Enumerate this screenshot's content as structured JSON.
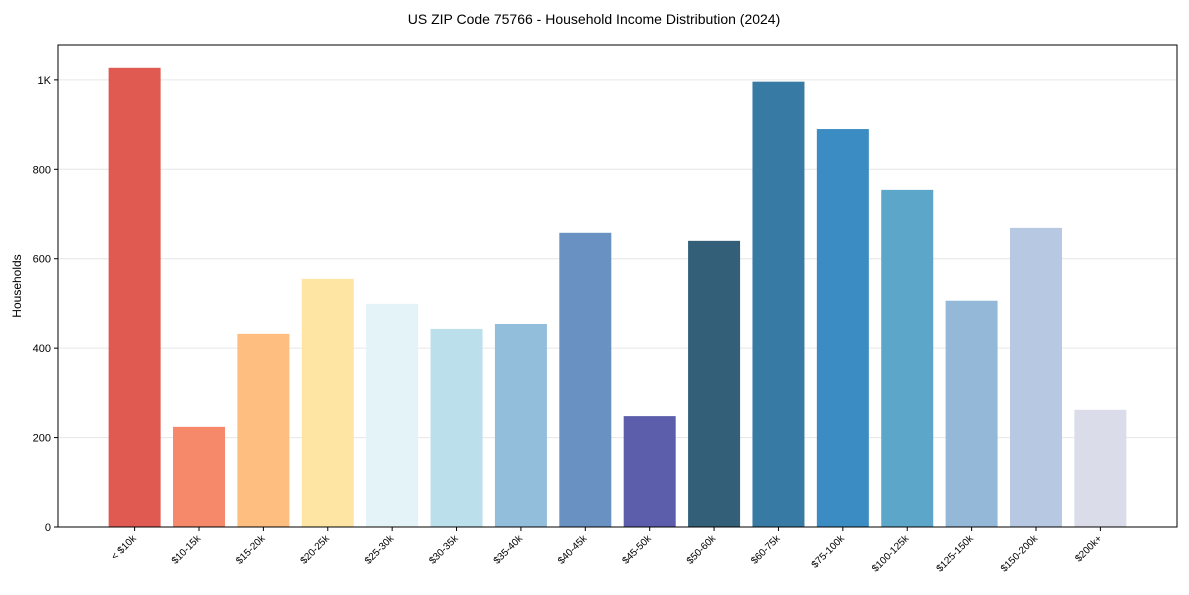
{
  "chart_data": {
    "type": "bar",
    "title": "US ZIP Code 75766 - Household Income Distribution (2024)",
    "xlabel": "",
    "ylabel": "Households",
    "ylim": [
      0,
      1078
    ],
    "grid": "horizontal",
    "yticks": [
      0,
      200,
      400,
      600,
      800,
      1000
    ],
    "ytick_labels": [
      "0",
      "200",
      "400",
      "600",
      "800",
      "1K"
    ],
    "categories": [
      "< $10k",
      "$10-15k",
      "$15-20k",
      "$20-25k",
      "$25-30k",
      "$30-35k",
      "$35-40k",
      "$40-45k",
      "$45-50k",
      "$50-60k",
      "$60-75k",
      "$75-100k",
      "$100-125k",
      "$125-150k",
      "$150-200k",
      "$200k+"
    ],
    "values": [
      1027,
      224,
      432,
      555,
      499,
      443,
      454,
      658,
      248,
      640,
      996,
      890,
      754,
      506,
      669,
      262
    ],
    "colors": [
      "#e05a52",
      "#f5896a",
      "#fdbe7f",
      "#fee5a3",
      "#e4f3f8",
      "#bbe0ec",
      "#93bedb",
      "#6992c3",
      "#5c5dab",
      "#336078",
      "#377ba4",
      "#3a8cc2",
      "#5ca6ca",
      "#94b8d8",
      "#b7c9e2",
      "#dadcea"
    ]
  }
}
